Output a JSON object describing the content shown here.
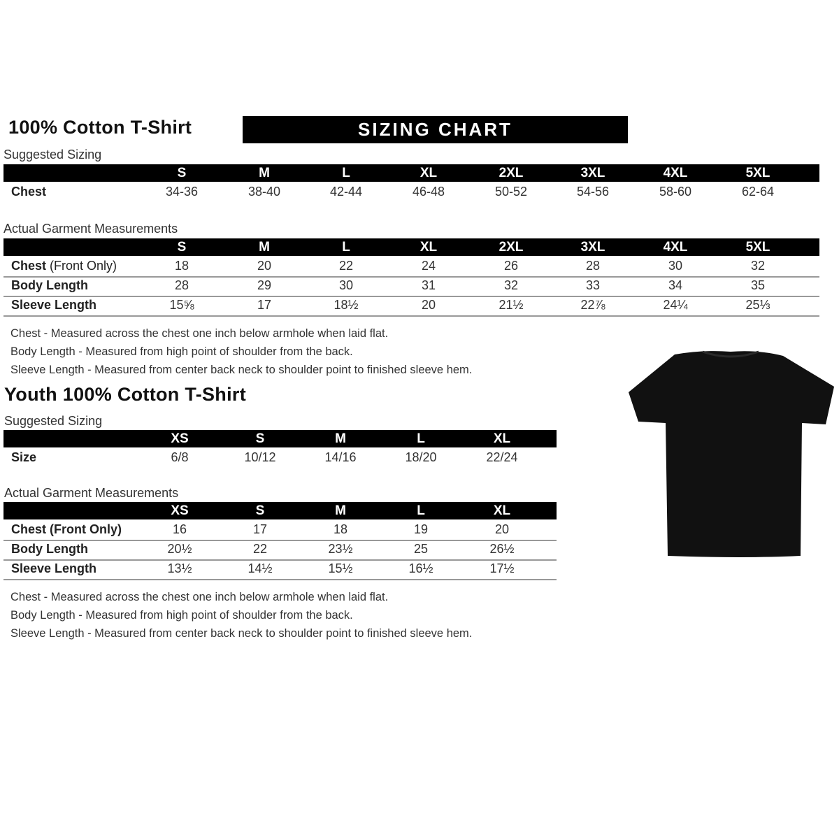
{
  "banner": "SIZING CHART",
  "adult": {
    "title": "100% Cotton T-Shirt",
    "suggested_label": "Suggested Sizing",
    "sizes": [
      "S",
      "M",
      "L",
      "XL",
      "2XL",
      "3XL",
      "4XL",
      "5XL"
    ],
    "suggested_rows": [
      {
        "label": "Chest",
        "values": [
          "34-36",
          "38-40",
          "42-44",
          "46-48",
          "50-52",
          "54-56",
          "58-60",
          "62-64"
        ]
      }
    ],
    "actual_label": "Actual Garment Measurements",
    "actual_rows": [
      {
        "label": "Chest",
        "label_extra": " (Front Only)",
        "values": [
          "18",
          "20",
          "22",
          "24",
          "26",
          "28",
          "30",
          "32"
        ]
      },
      {
        "label": "Body Length",
        "label_extra": "",
        "values": [
          "28",
          "29",
          "30",
          "31",
          "32",
          "33",
          "34",
          "35"
        ]
      },
      {
        "label": "Sleeve Length",
        "label_extra": "",
        "values": [
          "15⅝",
          "17",
          "18½",
          "20",
          "21½",
          "22⅞",
          "24¼",
          "25⅓"
        ]
      }
    ],
    "notes": [
      "Chest - Measured across the chest one inch below armhole when laid flat.",
      "Body Length - Measured from high point of shoulder from the back.",
      "Sleeve Length - Measured from center back neck to shoulder point to finished sleeve hem."
    ]
  },
  "youth": {
    "title": "Youth 100% Cotton T-Shirt",
    "suggested_label": "Suggested Sizing",
    "sizes": [
      "XS",
      "S",
      "M",
      "L",
      "XL"
    ],
    "suggested_rows": [
      {
        "label": "Size",
        "values": [
          "6/8",
          "10/12",
          "14/16",
          "18/20",
          "22/24"
        ]
      }
    ],
    "actual_label": "Actual Garment Measurements",
    "actual_rows": [
      {
        "label": "Chest (Front Only)",
        "label_extra": "",
        "values": [
          "16",
          "17",
          "18",
          "19",
          "20"
        ]
      },
      {
        "label": "Body Length",
        "label_extra": "",
        "values": [
          "20½",
          "22",
          "23½",
          "25",
          "26½"
        ]
      },
      {
        "label": "Sleeve Length",
        "label_extra": "",
        "values": [
          "13½",
          "14½",
          "15½",
          "16½",
          "17½"
        ]
      }
    ],
    "notes": [
      "Chest - Measured across the chest one inch below armhole when laid flat.",
      "Body Length - Measured from high point of shoulder from the back.",
      "Sleeve Length - Measured from center back neck to shoulder point to finished sleeve hem."
    ]
  },
  "tshirt_color": "#111111"
}
